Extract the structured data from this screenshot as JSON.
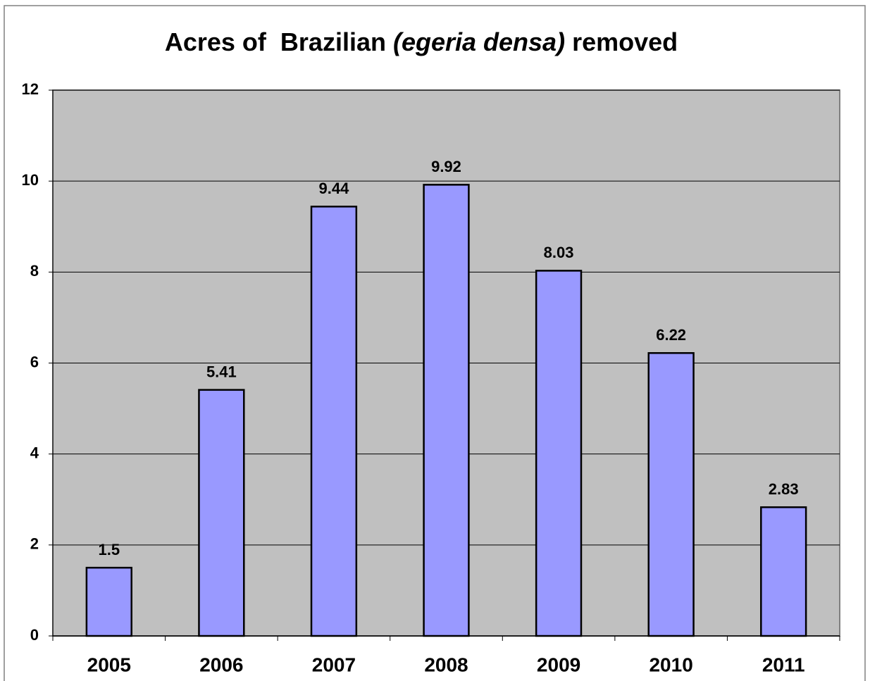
{
  "chart_data": {
    "type": "bar",
    "title": [
      "Acres of  Brazilian ",
      "(egeria densa)",
      " removed"
    ],
    "categories": [
      "2005",
      "2006",
      "2007",
      "2008",
      "2009",
      "2010",
      "2011"
    ],
    "values": [
      1.5,
      5.41,
      9.44,
      9.92,
      8.03,
      6.22,
      2.83
    ],
    "color": "#9999ff",
    "ylim": [
      0,
      12
    ],
    "yticks": [
      0,
      2,
      4,
      6,
      8,
      10,
      12
    ],
    "grid": true
  }
}
